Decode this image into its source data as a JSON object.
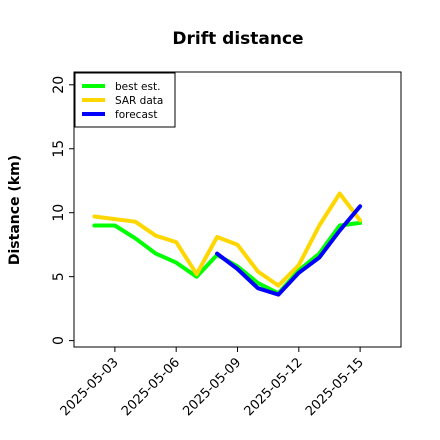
{
  "chart_data": {
    "type": "line",
    "title": "Drift distance",
    "xlabel": "",
    "ylabel": "Distance (km)",
    "ylim": [
      -0.5,
      21
    ],
    "xlim": [
      "2025-05-01",
      "2025-05-17"
    ],
    "yticks": [
      0,
      5,
      10,
      15,
      20
    ],
    "xticks": [
      "2025-05-03",
      "2025-05-06",
      "2025-05-09",
      "2025-05-12",
      "2025-05-15"
    ],
    "grid": false,
    "legend": {
      "placement": "top-left"
    },
    "series": [
      {
        "name": "best est.",
        "color": "#00ff00",
        "x": [
          "2025-05-02",
          "2025-05-03",
          "2025-05-04",
          "2025-05-05",
          "2025-05-06",
          "2025-05-07",
          "2025-05-08",
          "2025-05-09",
          "2025-05-10",
          "2025-05-11",
          "2025-05-12",
          "2025-05-13",
          "2025-05-14",
          "2025-05-15"
        ],
        "y": [
          9.0,
          9.0,
          8.0,
          6.8,
          6.1,
          5.0,
          6.7,
          5.8,
          4.5,
          3.7,
          5.5,
          6.8,
          9.0,
          9.2
        ]
      },
      {
        "name": "SAR data",
        "color": "#ffd700",
        "x": [
          "2025-05-02",
          "2025-05-03",
          "2025-05-04",
          "2025-05-05",
          "2025-05-06",
          "2025-05-07",
          "2025-05-08",
          "2025-05-09",
          "2025-05-10",
          "2025-05-11",
          "2025-05-12",
          "2025-05-13",
          "2025-05-14",
          "2025-05-15"
        ],
        "y": [
          9.7,
          9.5,
          9.3,
          8.2,
          7.7,
          5.2,
          8.1,
          7.5,
          5.4,
          4.3,
          5.9,
          9.0,
          11.5,
          9.4
        ]
      },
      {
        "name": "forecast",
        "color": "#0000ff",
        "x": [
          "2025-05-08",
          "2025-05-09",
          "2025-05-10",
          "2025-05-11",
          "2025-05-12",
          "2025-05-13",
          "2025-05-14",
          "2025-05-15"
        ],
        "y": [
          6.8,
          5.6,
          4.1,
          3.6,
          5.3,
          6.5,
          8.6,
          10.5
        ]
      }
    ]
  }
}
